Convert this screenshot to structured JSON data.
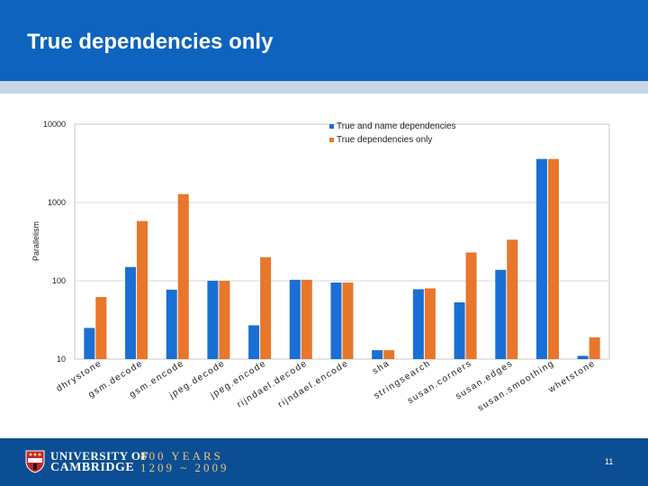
{
  "slide": {
    "title": "True dependencies only",
    "page_number": "11",
    "university_line1": "UNIVERSITY OF",
    "university_line2": "CAMBRIDGE",
    "anniversary_line1": "800 YEARS",
    "anniversary_line2": "1209 ~ 2009"
  },
  "colors": {
    "header": "#0d63bd",
    "footer": "#0c4e93",
    "series1": "#1a6fd4",
    "series2": "#e8762b",
    "gold": "#e9c77a"
  },
  "chart_data": {
    "type": "bar",
    "title": "",
    "xlabel": "",
    "ylabel": "Parallelism",
    "yscale": "log",
    "ylim": [
      10,
      10000
    ],
    "yticks": [
      10,
      100,
      1000,
      10000
    ],
    "ytick_labels": [
      "10",
      "100",
      "1000",
      "10000"
    ],
    "legend_position": "top-right",
    "categories": [
      "dhrystone",
      "gsm.decode",
      "gsm.encode",
      "jpeg.decode",
      "jpeg.encode",
      "rijndael.decode",
      "rijndael.encode",
      "sha",
      "stringsearch",
      "susan.corners",
      "susan.edges",
      "susan.smoothing",
      "whetstone"
    ],
    "series": [
      {
        "name": "True and name dependencies",
        "values": [
          25,
          150,
          77,
          100,
          27,
          103,
          95,
          13,
          78,
          53,
          138,
          3600,
          11
        ]
      },
      {
        "name": "True dependencies only",
        "values": [
          62,
          580,
          1280,
          100,
          200,
          103,
          95,
          13,
          80,
          230,
          335,
          3600,
          19
        ]
      }
    ]
  }
}
